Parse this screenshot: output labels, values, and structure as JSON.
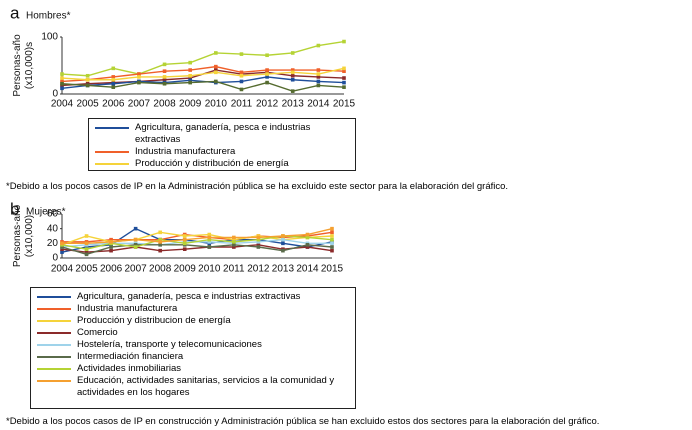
{
  "chart_data": [
    {
      "type": "line",
      "panel": "a",
      "title": "Hombres*",
      "ylabel": [
        "Personas-año",
        "(x10,000)s"
      ],
      "x": [
        2004,
        2005,
        2006,
        2007,
        2008,
        2009,
        2010,
        2011,
        2012,
        2013,
        2014,
        2015
      ],
      "xlim": [
        2004,
        2015
      ],
      "ylim": [
        0,
        100
      ],
      "yticks": [
        0,
        100
      ],
      "series": [
        {
          "name": null,
          "color": "#b5d334",
          "values": [
            35,
            32,
            45,
            35,
            52,
            55,
            72,
            70,
            68,
            72,
            85,
            92
          ]
        },
        {
          "name": null,
          "color": "#8b2a2a",
          "values": [
            15,
            18,
            20,
            22,
            25,
            28,
            42,
            35,
            38,
            32,
            30,
            28
          ]
        },
        {
          "name": "Agricultura, ganadería, pesca e industrias extractivas",
          "color": "#1f4e9a",
          "values": [
            10,
            15,
            18,
            22,
            20,
            24,
            20,
            22,
            30,
            25,
            22,
            20
          ]
        },
        {
          "name": "Industria manufacturera",
          "color": "#f0602a",
          "values": [
            22,
            25,
            30,
            35,
            40,
            42,
            48,
            38,
            42,
            42,
            42,
            40
          ]
        },
        {
          "name": "Producción y distribución de energía",
          "color": "#f5d33a",
          "values": [
            28,
            25,
            25,
            30,
            30,
            32,
            38,
            32,
            35,
            38,
            35,
            45
          ]
        },
        {
          "name": null,
          "color": "#556b2f",
          "values": [
            18,
            15,
            12,
            20,
            18,
            20,
            22,
            8,
            20,
            5,
            15,
            12
          ]
        }
      ],
      "note": "*Debido a los pocos casos de IP en la Administración pública se ha excluido este sector para la elaboración del gráfico."
    },
    {
      "type": "line",
      "panel": "b",
      "title": "Mujeres*",
      "ylabel": [
        "Personas-año",
        "(x10,000)"
      ],
      "x": [
        2004,
        2005,
        2006,
        2007,
        2008,
        2009,
        2010,
        2011,
        2012,
        2013,
        2014,
        2015
      ],
      "xlim": [
        2004,
        2015
      ],
      "ylim": [
        0,
        60
      ],
      "yticks": [
        0,
        20,
        40,
        60
      ],
      "series": [
        {
          "name": "Agricultura, ganadería, pesca e industrias extractivas",
          "color": "#1f4e9a",
          "values": [
            8,
            15,
            18,
            40,
            25,
            25,
            20,
            25,
            25,
            20,
            15,
            22
          ]
        },
        {
          "name": "Industria manufacturera",
          "color": "#f0602a",
          "values": [
            22,
            22,
            25,
            25,
            25,
            32,
            28,
            25,
            30,
            28,
            30,
            35
          ]
        },
        {
          "name": "Producción y distribucion de energía",
          "color": "#f5d33a",
          "values": [
            18,
            30,
            22,
            25,
            35,
            30,
            32,
            25,
            30,
            25,
            28,
            30
          ]
        },
        {
          "name": "Comercio",
          "color": "#8b2a2a",
          "values": [
            12,
            8,
            10,
            15,
            10,
            12,
            15,
            15,
            18,
            12,
            15,
            10
          ]
        },
        {
          "name": "Hostelería, transporte y telecomunicaciones",
          "color": "#9fd3ea",
          "values": [
            15,
            18,
            20,
            20,
            18,
            22,
            22,
            20,
            22,
            25,
            20,
            20
          ]
        },
        {
          "name": "Intermediación financiera",
          "color": "#5a6b4a",
          "values": [
            15,
            5,
            15,
            18,
            18,
            18,
            15,
            18,
            15,
            10,
            18,
            15
          ]
        },
        {
          "name": "Actividades inmobiliarias",
          "color": "#b5d334",
          "values": [
            18,
            12,
            20,
            15,
            25,
            20,
            25,
            22,
            25,
            30,
            28,
            25
          ]
        },
        {
          "name": "Educación, actividades sanitarias, servicios a la comunidad y actividades en los hogares",
          "color": "#f5a030",
          "values": [
            20,
            20,
            22,
            25,
            22,
            25,
            28,
            28,
            28,
            30,
            32,
            40
          ]
        }
      ],
      "note": "*Debido a los pocos casos de IP en construcción y Administración pública se han excluido estos dos sectores para la elaboración del gráfico."
    }
  ]
}
